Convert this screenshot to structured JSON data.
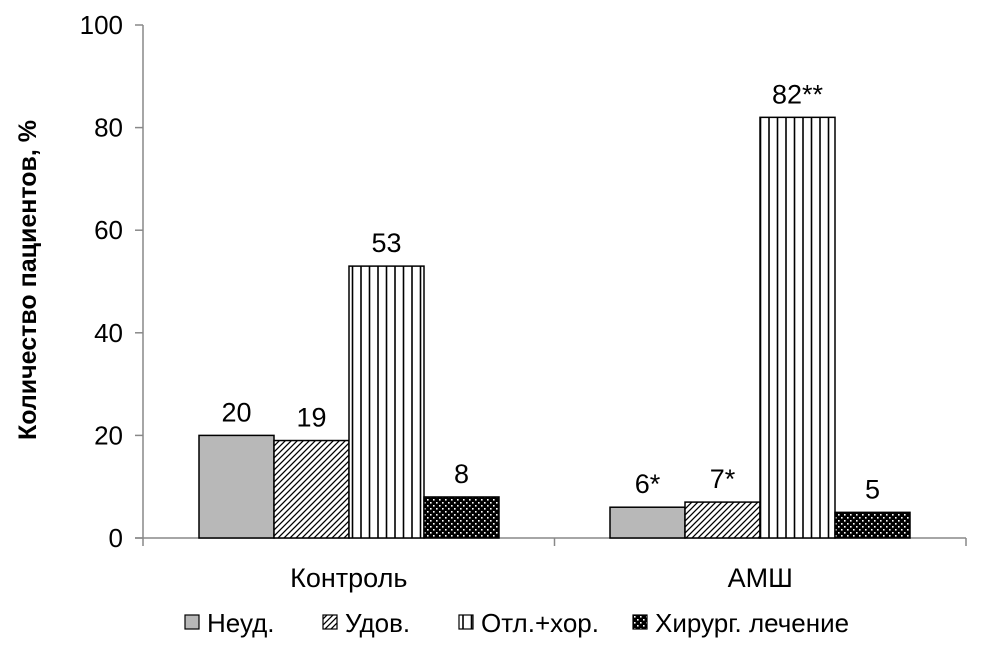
{
  "chart_data": {
    "type": "bar",
    "ylabel": "Количество пациентов, %",
    "ylim": [
      0,
      100
    ],
    "yticks": [
      "0",
      "20",
      "40",
      "60",
      "80",
      "100"
    ],
    "categories": [
      "Контроль",
      "АМШ"
    ],
    "series": [
      {
        "name": "Неуд.",
        "pattern": "solid-gray",
        "values": [
          20,
          6
        ],
        "labels": [
          "20",
          "6*"
        ]
      },
      {
        "name": "Удов.",
        "pattern": "diagonal-hatch",
        "values": [
          19,
          7
        ],
        "labels": [
          "19",
          "7*"
        ]
      },
      {
        "name": "Отл.+хор.",
        "pattern": "vertical-lines",
        "values": [
          53,
          82
        ],
        "labels": [
          "53",
          "82**"
        ]
      },
      {
        "name": "Хирург. лечение",
        "pattern": "dark-dots",
        "values": [
          8,
          5
        ],
        "labels": [
          "8",
          "5"
        ]
      }
    ],
    "legend_position": "bottom",
    "grid": false,
    "colors": {
      "gray": "#b8b8b8",
      "line": "#000000",
      "background": "#ffffff"
    }
  }
}
